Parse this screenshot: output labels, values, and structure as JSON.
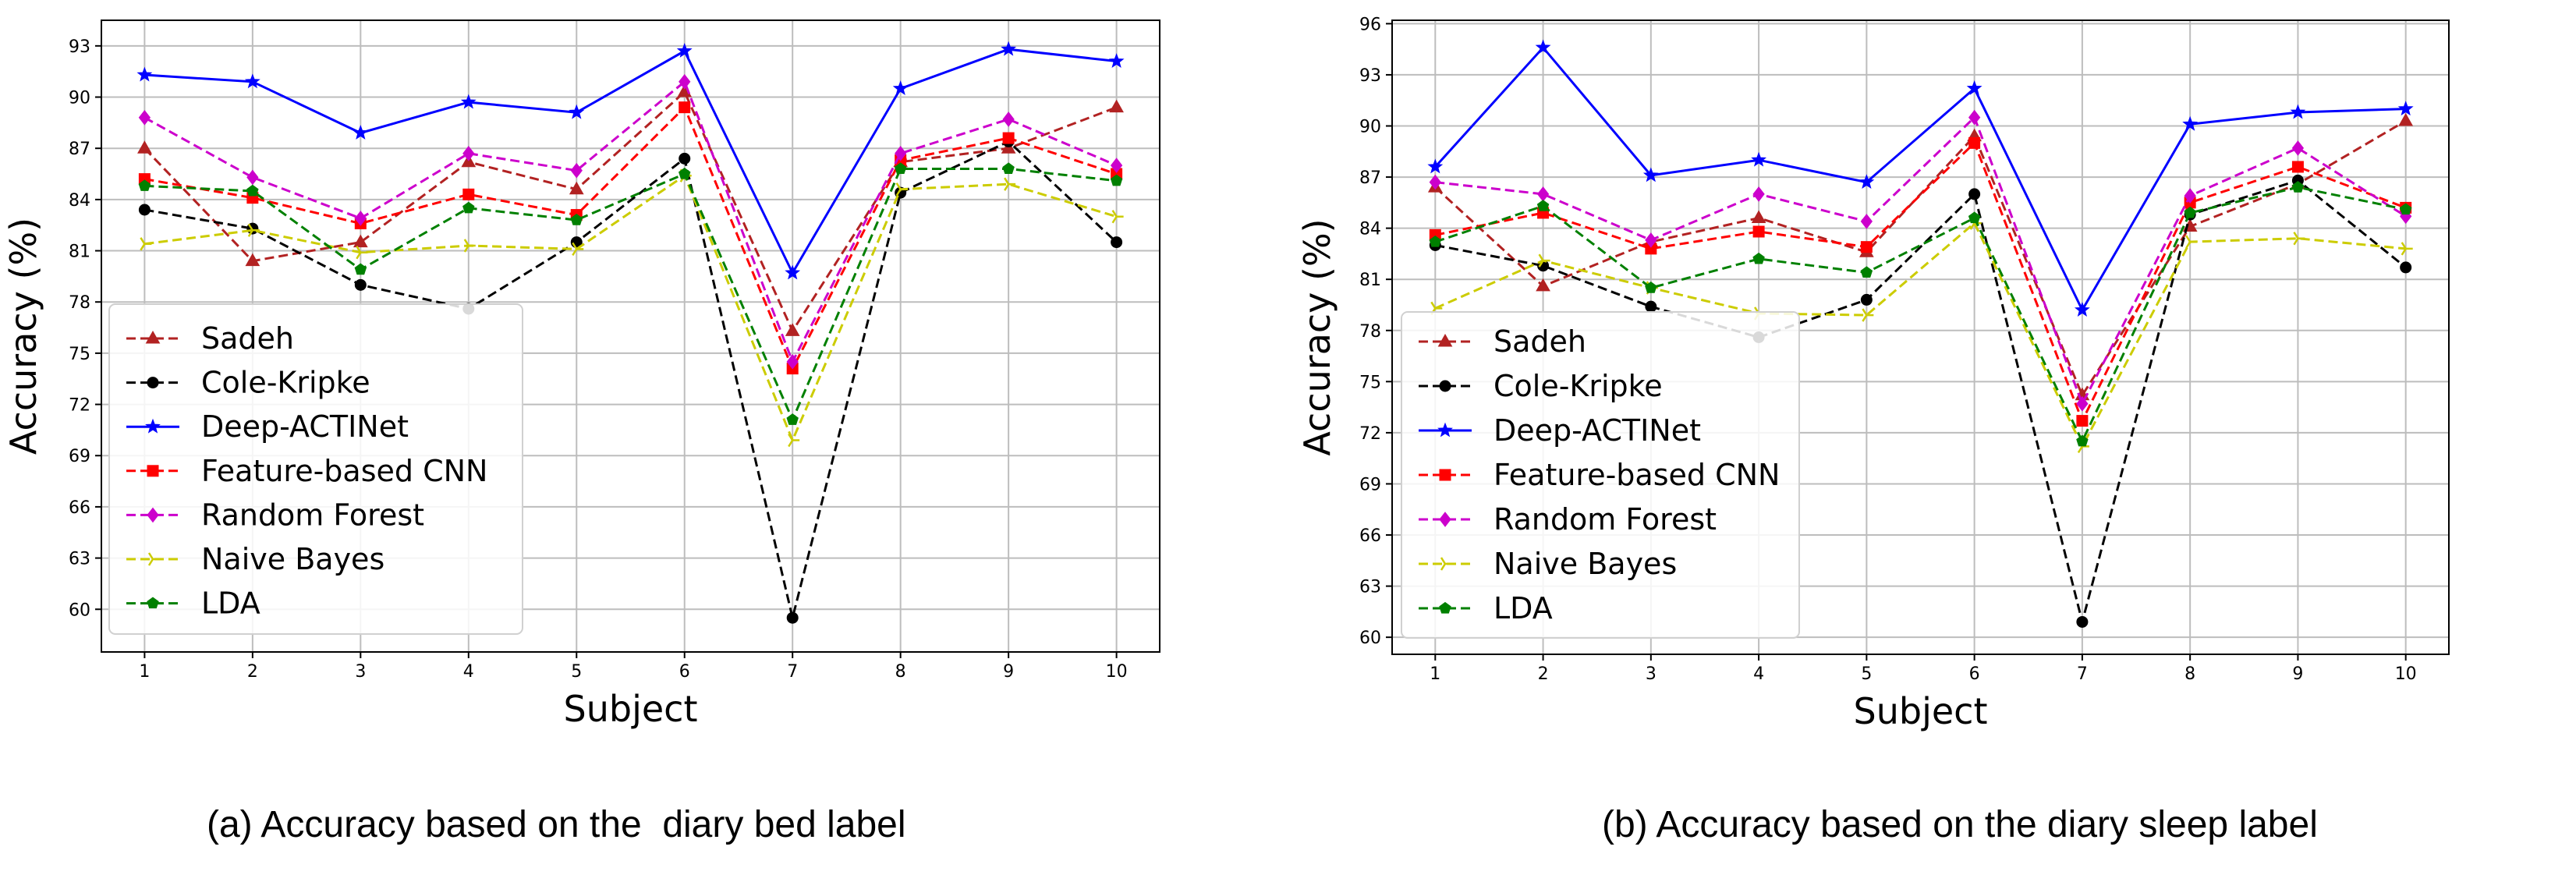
{
  "chart_data": [
    {
      "type": "line",
      "caption": "(a) Accuracy based on the  diary bed label",
      "xlabel": "Subject",
      "ylabel": "Accuracy (%)",
      "x": [
        1,
        2,
        3,
        4,
        5,
        6,
        7,
        8,
        9,
        10
      ],
      "xlim": [
        0.6,
        10.4
      ],
      "ylim": [
        57.5,
        94.5
      ],
      "yticks": [
        60,
        63,
        66,
        69,
        72,
        75,
        78,
        81,
        84,
        87,
        90,
        93
      ],
      "grid": true,
      "legend_position": "lower-left",
      "series": [
        {
          "name": "Sadeh",
          "color": "#b22222",
          "dash": "dashed",
          "marker": "triangle",
          "values": [
            87.0,
            80.4,
            81.5,
            86.2,
            84.6,
            90.3,
            76.3,
            86.2,
            87.0,
            89.4
          ]
        },
        {
          "name": "Cole-Kripke",
          "color": "#000000",
          "dash": "dashed",
          "marker": "circle",
          "values": [
            83.4,
            82.3,
            79.0,
            77.6,
            81.5,
            86.4,
            59.5,
            84.4,
            87.4,
            81.5
          ]
        },
        {
          "name": "Deep-ACTINet",
          "color": "#0000ff",
          "dash": "solid",
          "marker": "star",
          "values": [
            91.3,
            90.9,
            87.9,
            89.7,
            89.1,
            92.7,
            79.7,
            90.5,
            92.8,
            92.1
          ]
        },
        {
          "name": "Feature-based CNN",
          "color": "#ff0000",
          "dash": "dashed",
          "marker": "square",
          "values": [
            85.2,
            84.1,
            82.6,
            84.3,
            83.1,
            89.4,
            74.1,
            86.3,
            87.6,
            85.5
          ]
        },
        {
          "name": "Random Forest",
          "color": "#cc00cc",
          "dash": "dashed",
          "marker": "diamond",
          "values": [
            88.8,
            85.3,
            82.9,
            86.7,
            85.7,
            90.9,
            74.5,
            86.7,
            88.7,
            86.0
          ]
        },
        {
          "name": "Naive Bayes",
          "color": "#cccc00",
          "dash": "dashed",
          "marker": "tri",
          "values": [
            81.4,
            82.2,
            80.9,
            81.3,
            81.1,
            85.4,
            69.9,
            84.6,
            84.9,
            83.0
          ]
        },
        {
          "name": "LDA",
          "color": "#008000",
          "dash": "dashed",
          "marker": "pentagon",
          "values": [
            84.8,
            84.5,
            79.9,
            83.5,
            82.8,
            85.5,
            71.1,
            85.8,
            85.8,
            85.1
          ]
        }
      ]
    },
    {
      "type": "line",
      "caption": "(b) Accuracy based on the diary sleep label",
      "xlabel": "Subject",
      "ylabel": "Accuracy (%)",
      "x": [
        1,
        2,
        3,
        4,
        5,
        6,
        7,
        8,
        9,
        10
      ],
      "xlim": [
        0.6,
        10.4
      ],
      "ylim": [
        59.0,
        96.2
      ],
      "yticks": [
        60,
        63,
        66,
        69,
        72,
        75,
        78,
        81,
        84,
        87,
        90,
        93,
        96
      ],
      "grid": true,
      "legend_position": "lower-left",
      "series": [
        {
          "name": "Sadeh",
          "color": "#b22222",
          "dash": "dashed",
          "marker": "triangle",
          "values": [
            86.4,
            80.6,
            83.2,
            84.6,
            82.6,
            89.4,
            74.2,
            84.1,
            86.6,
            90.3
          ]
        },
        {
          "name": "Cole-Kripke",
          "color": "#000000",
          "dash": "dashed",
          "marker": "circle",
          "values": [
            83.0,
            81.8,
            79.4,
            77.6,
            79.8,
            86.0,
            60.9,
            84.8,
            86.8,
            81.7
          ]
        },
        {
          "name": "Deep-ACTINet",
          "color": "#0000ff",
          "dash": "solid",
          "marker": "star",
          "values": [
            87.6,
            94.6,
            87.1,
            88.0,
            86.7,
            92.2,
            79.2,
            90.1,
            90.8,
            91.0
          ]
        },
        {
          "name": "Feature-based CNN",
          "color": "#ff0000",
          "dash": "dashed",
          "marker": "square",
          "values": [
            83.6,
            84.9,
            82.8,
            83.8,
            82.9,
            89.0,
            72.7,
            85.5,
            87.6,
            85.2
          ]
        },
        {
          "name": "Random Forest",
          "color": "#cc00cc",
          "dash": "dashed",
          "marker": "diamond",
          "values": [
            86.7,
            86.0,
            83.3,
            86.0,
            84.4,
            90.5,
            73.7,
            85.9,
            88.7,
            84.7
          ]
        },
        {
          "name": "Naive Bayes",
          "color": "#cccc00",
          "dash": "dashed",
          "marker": "tri",
          "values": [
            79.3,
            82.1,
            80.5,
            79.0,
            78.9,
            84.3,
            71.2,
            83.2,
            83.4,
            82.8
          ]
        },
        {
          "name": "LDA",
          "color": "#008000",
          "dash": "dashed",
          "marker": "pentagon",
          "values": [
            83.2,
            85.3,
            80.5,
            82.2,
            81.4,
            84.6,
            71.5,
            84.9,
            86.4,
            85.1
          ]
        }
      ]
    }
  ]
}
